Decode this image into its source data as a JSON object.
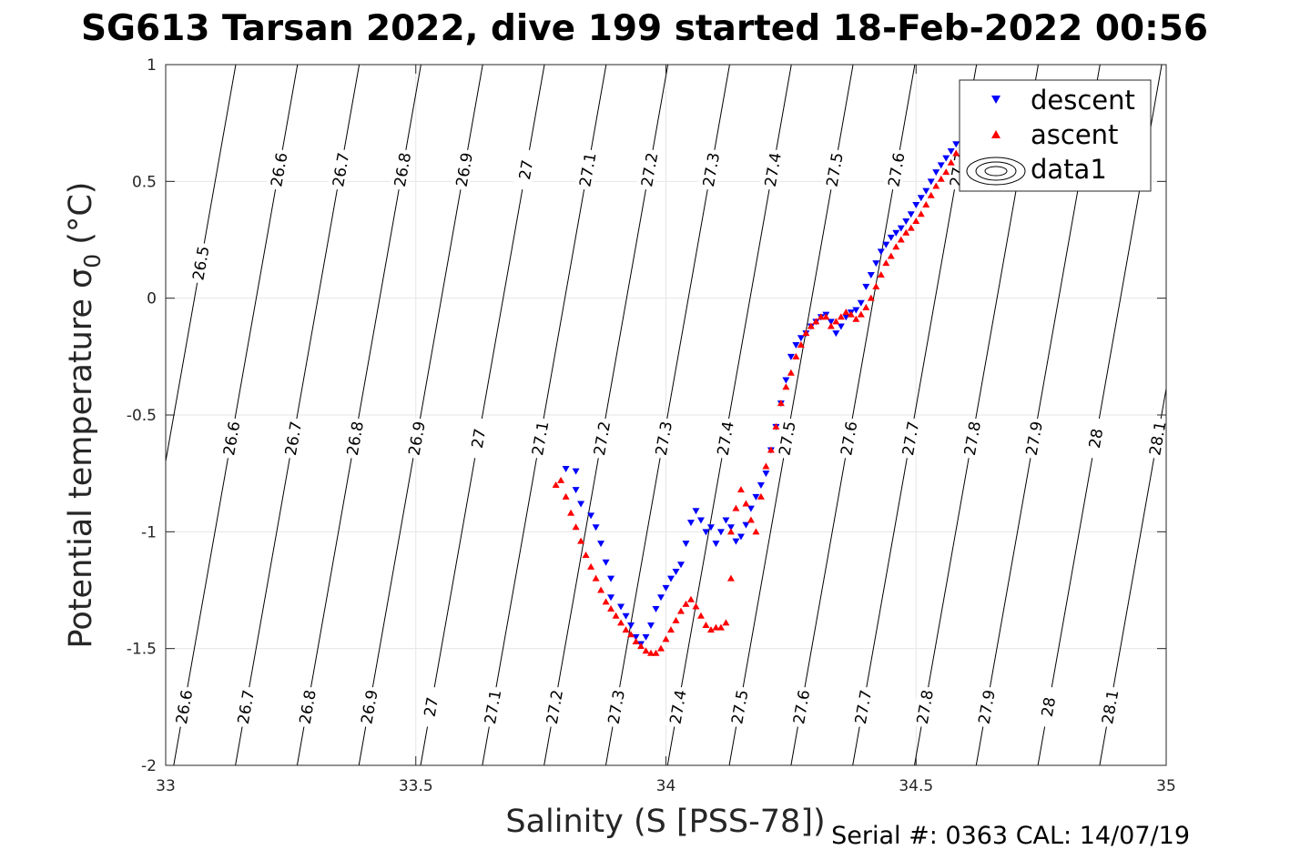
{
  "chart_data": {
    "type": "scatter",
    "title": "SG613 Tarsan 2022, dive 199 started 18-Feb-2022 00:56",
    "xlabel": "Salinity (S [PSS-78])",
    "ylabel": "Potential temperature σ",
    "ylabel_sub": "0",
    "ylabel_unit": "(°C)",
    "xlim": [
      33,
      35
    ],
    "ylim": [
      -2,
      1
    ],
    "x_ticks": [
      33,
      33.5,
      34,
      34.5,
      35
    ],
    "x_tick_labels": [
      "33",
      "33.5",
      "34",
      "34.5",
      "35"
    ],
    "y_ticks": [
      -2,
      -1.5,
      -1,
      -0.5,
      0,
      0.5,
      1
    ],
    "y_tick_labels": [
      "-2",
      "-1.5",
      "-1",
      "-0.5",
      "0",
      "0.5",
      "1"
    ],
    "grid": true,
    "legend_position": "top-right",
    "series": [
      {
        "name": "descent",
        "marker": "triangle-down",
        "color": "#0000ff",
        "points": [
          [
            33.8,
            -0.73
          ],
          [
            33.82,
            -0.74
          ],
          [
            33.82,
            -0.82
          ],
          [
            33.83,
            -0.88
          ],
          [
            33.85,
            -0.93
          ],
          [
            33.86,
            -0.98
          ],
          [
            33.87,
            -1.05
          ],
          [
            33.88,
            -1.13
          ],
          [
            33.89,
            -1.2
          ],
          [
            33.89,
            -1.28
          ],
          [
            33.91,
            -1.32
          ],
          [
            33.92,
            -1.36
          ],
          [
            33.93,
            -1.4
          ],
          [
            33.94,
            -1.45
          ],
          [
            33.95,
            -1.48
          ],
          [
            33.96,
            -1.45
          ],
          [
            33.97,
            -1.4
          ],
          [
            33.98,
            -1.33
          ],
          [
            33.99,
            -1.28
          ],
          [
            34.0,
            -1.24
          ],
          [
            34.01,
            -1.2
          ],
          [
            34.02,
            -1.17
          ],
          [
            34.03,
            -1.14
          ],
          [
            34.04,
            -1.05
          ],
          [
            34.05,
            -0.96
          ],
          [
            34.06,
            -0.91
          ],
          [
            34.07,
            -0.95
          ],
          [
            34.08,
            -1.0
          ],
          [
            34.09,
            -0.98
          ],
          [
            34.1,
            -1.05
          ],
          [
            34.11,
            -1.0
          ],
          [
            34.12,
            -0.95
          ],
          [
            34.13,
            -0.98
          ],
          [
            34.14,
            -1.04
          ],
          [
            34.15,
            -1.02
          ],
          [
            34.16,
            -0.97
          ],
          [
            34.17,
            -0.9
          ],
          [
            34.18,
            -0.85
          ],
          [
            34.19,
            -0.8
          ],
          [
            34.2,
            -0.75
          ],
          [
            34.21,
            -0.65
          ],
          [
            34.22,
            -0.55
          ],
          [
            34.23,
            -0.45
          ],
          [
            34.24,
            -0.35
          ],
          [
            34.25,
            -0.25
          ],
          [
            34.26,
            -0.2
          ],
          [
            34.27,
            -0.17
          ],
          [
            34.28,
            -0.15
          ],
          [
            34.29,
            -0.12
          ],
          [
            34.3,
            -0.1
          ],
          [
            34.31,
            -0.08
          ],
          [
            34.32,
            -0.07
          ],
          [
            34.33,
            -0.1
          ],
          [
            34.34,
            -0.15
          ],
          [
            34.35,
            -0.12
          ],
          [
            34.36,
            -0.08
          ],
          [
            34.37,
            -0.06
          ],
          [
            34.38,
            -0.05
          ],
          [
            34.39,
            -0.02
          ],
          [
            34.4,
            0.05
          ],
          [
            34.41,
            0.1
          ],
          [
            34.42,
            0.15
          ],
          [
            34.43,
            0.2
          ],
          [
            34.44,
            0.23
          ],
          [
            34.45,
            0.26
          ],
          [
            34.46,
            0.28
          ],
          [
            34.47,
            0.3
          ],
          [
            34.48,
            0.33
          ],
          [
            34.49,
            0.36
          ],
          [
            34.5,
            0.4
          ],
          [
            34.51,
            0.43
          ],
          [
            34.52,
            0.46
          ],
          [
            34.53,
            0.5
          ],
          [
            34.54,
            0.54
          ],
          [
            34.55,
            0.57
          ],
          [
            34.56,
            0.6
          ],
          [
            34.57,
            0.63
          ],
          [
            34.58,
            0.66
          ]
        ]
      },
      {
        "name": "ascent",
        "marker": "triangle-up",
        "color": "#ff0000",
        "points": [
          [
            33.78,
            -0.8
          ],
          [
            33.79,
            -0.78
          ],
          [
            33.8,
            -0.85
          ],
          [
            33.81,
            -0.92
          ],
          [
            33.82,
            -0.98
          ],
          [
            33.83,
            -1.04
          ],
          [
            33.84,
            -1.1
          ],
          [
            33.85,
            -1.15
          ],
          [
            33.86,
            -1.2
          ],
          [
            33.87,
            -1.25
          ],
          [
            33.88,
            -1.3
          ],
          [
            33.89,
            -1.33
          ],
          [
            33.9,
            -1.36
          ],
          [
            33.91,
            -1.39
          ],
          [
            33.92,
            -1.42
          ],
          [
            33.93,
            -1.44
          ],
          [
            33.94,
            -1.47
          ],
          [
            33.95,
            -1.49
          ],
          [
            33.96,
            -1.51
          ],
          [
            33.97,
            -1.52
          ],
          [
            33.98,
            -1.52
          ],
          [
            33.99,
            -1.5
          ],
          [
            34.0,
            -1.46
          ],
          [
            34.01,
            -1.42
          ],
          [
            34.02,
            -1.38
          ],
          [
            34.03,
            -1.34
          ],
          [
            34.04,
            -1.31
          ],
          [
            34.05,
            -1.29
          ],
          [
            34.06,
            -1.32
          ],
          [
            34.07,
            -1.36
          ],
          [
            34.08,
            -1.4
          ],
          [
            34.09,
            -1.42
          ],
          [
            34.1,
            -1.41
          ],
          [
            34.11,
            -1.41
          ],
          [
            34.12,
            -1.39
          ],
          [
            34.13,
            -1.2
          ],
          [
            34.13,
            -1.0
          ],
          [
            34.14,
            -0.9
          ],
          [
            34.15,
            -0.82
          ],
          [
            34.16,
            -0.88
          ],
          [
            34.17,
            -0.95
          ],
          [
            34.18,
            -1.0
          ],
          [
            34.19,
            -0.85
          ],
          [
            34.2,
            -0.72
          ],
          [
            34.21,
            -0.65
          ],
          [
            34.22,
            -0.55
          ],
          [
            34.23,
            -0.45
          ],
          [
            34.24,
            -0.38
          ],
          [
            34.25,
            -0.32
          ],
          [
            34.26,
            -0.25
          ],
          [
            34.27,
            -0.2
          ],
          [
            34.28,
            -0.15
          ],
          [
            34.29,
            -0.12
          ],
          [
            34.3,
            -0.1
          ],
          [
            34.31,
            -0.08
          ],
          [
            34.32,
            -0.08
          ],
          [
            34.33,
            -0.12
          ],
          [
            34.34,
            -0.1
          ],
          [
            34.35,
            -0.08
          ],
          [
            34.36,
            -0.06
          ],
          [
            34.37,
            -0.07
          ],
          [
            34.38,
            -0.09
          ],
          [
            34.39,
            -0.07
          ],
          [
            34.4,
            -0.04
          ],
          [
            34.41,
            0.0
          ],
          [
            34.42,
            0.05
          ],
          [
            34.43,
            0.1
          ],
          [
            34.44,
            0.15
          ],
          [
            34.45,
            0.18
          ],
          [
            34.46,
            0.22
          ],
          [
            34.47,
            0.25
          ],
          [
            34.48,
            0.28
          ],
          [
            34.49,
            0.3
          ],
          [
            34.5,
            0.33
          ],
          [
            34.51,
            0.36
          ],
          [
            34.52,
            0.4
          ],
          [
            34.53,
            0.44
          ],
          [
            34.54,
            0.48
          ],
          [
            34.55,
            0.51
          ],
          [
            34.56,
            0.54
          ],
          [
            34.57,
            0.58
          ],
          [
            34.58,
            0.62
          ]
        ]
      },
      {
        "name": "data1",
        "marker": "contour"
      }
    ],
    "isopycnals": {
      "sigma_at_reference": [
        26.5,
        26.6,
        26.7,
        26.8,
        26.9,
        27,
        27.1,
        27.2,
        27.3,
        27.4,
        27.5,
        27.6,
        27.7,
        27.8,
        27.9,
        28,
        28.1
      ],
      "top_labels": [
        "26.5",
        "26.6",
        "26.7",
        "26.8",
        "26.9",
        "27",
        "27.1",
        "27.2",
        "27.3",
        "27.4",
        "27.5",
        "27.6",
        "27.7"
      ],
      "middle_labels": [
        "26.6",
        "26.7",
        "26.8",
        "26.9",
        "27",
        "27.1",
        "27.2",
        "27.3",
        "27.4",
        "27.5",
        "27.6",
        "27.7",
        "27.8",
        "27.9",
        "28",
        "28.1"
      ],
      "bottom_labels": [
        "26.6",
        "26.7",
        "26.8",
        "26.9",
        "27",
        "27.1",
        "27.2",
        "27.3",
        "27.4",
        "27.5",
        "27.6",
        "27.7",
        "27.8",
        "27.9",
        "28",
        "28.1"
      ]
    }
  },
  "footer": {
    "serial_text": "Serial #: 0363  CAL: 14/07/19"
  }
}
